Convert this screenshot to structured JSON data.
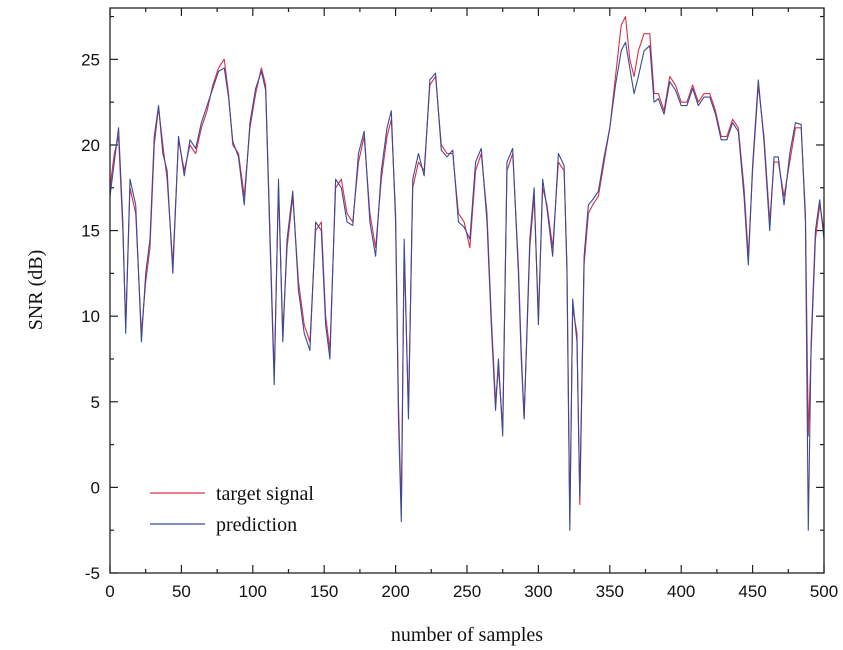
{
  "chart_data": {
    "type": "line",
    "title": "",
    "xlabel": "number of samples",
    "ylabel": "SNR (dB)",
    "xlim": [
      0,
      500
    ],
    "ylim": [
      -5,
      28
    ],
    "x_ticks": [
      0,
      50,
      100,
      150,
      200,
      250,
      300,
      350,
      400,
      450,
      500
    ],
    "y_ticks": [
      -5,
      0,
      5,
      10,
      15,
      20,
      25
    ],
    "grid": false,
    "legend_position": "bottom-left",
    "series": [
      {
        "name": "target signal",
        "color": "#d6304a",
        "points": [
          [
            0,
            17.5
          ],
          [
            3,
            19.5
          ],
          [
            6,
            20.5
          ],
          [
            9,
            15
          ],
          [
            11,
            9.5
          ],
          [
            14,
            17.5
          ],
          [
            18,
            16
          ],
          [
            22,
            9
          ],
          [
            25,
            12
          ],
          [
            28,
            14
          ],
          [
            31,
            20
          ],
          [
            34,
            22.2
          ],
          [
            37,
            20
          ],
          [
            40,
            18
          ],
          [
            44,
            13
          ],
          [
            48,
            20.3
          ],
          [
            52,
            18.5
          ],
          [
            56,
            20
          ],
          [
            60,
            19.5
          ],
          [
            64,
            21
          ],
          [
            68,
            22
          ],
          [
            72,
            23.5
          ],
          [
            76,
            24.5
          ],
          [
            80,
            25
          ],
          [
            83,
            23
          ],
          [
            86,
            20
          ],
          [
            90,
            19.5
          ],
          [
            94,
            17
          ],
          [
            98,
            21
          ],
          [
            102,
            23
          ],
          [
            106,
            24.5
          ],
          [
            109,
            23.5
          ],
          [
            112,
            15
          ],
          [
            115,
            6.5
          ],
          [
            118,
            17.5
          ],
          [
            121,
            9
          ],
          [
            124,
            14
          ],
          [
            128,
            17
          ],
          [
            132,
            12
          ],
          [
            136,
            9.5
          ],
          [
            140,
            8.5
          ],
          [
            144,
            15
          ],
          [
            148,
            15.5
          ],
          [
            151,
            10
          ],
          [
            154,
            8
          ],
          [
            158,
            17.5
          ],
          [
            162,
            18
          ],
          [
            166,
            16
          ],
          [
            170,
            15.5
          ],
          [
            174,
            19
          ],
          [
            178,
            20.5
          ],
          [
            182,
            16
          ],
          [
            186,
            14
          ],
          [
            190,
            18
          ],
          [
            194,
            20.5
          ],
          [
            197,
            21.5
          ],
          [
            200,
            16
          ],
          [
            202,
            5
          ],
          [
            204,
            -1.5
          ],
          [
            206,
            14
          ],
          [
            209,
            4.5
          ],
          [
            212,
            17.5
          ],
          [
            216,
            19
          ],
          [
            220,
            18.5
          ],
          [
            224,
            23.5
          ],
          [
            228,
            24
          ],
          [
            232,
            20
          ],
          [
            236,
            19.5
          ],
          [
            240,
            19.5
          ],
          [
            244,
            16
          ],
          [
            248,
            15.5
          ],
          [
            252,
            14
          ],
          [
            256,
            18.5
          ],
          [
            260,
            19.5
          ],
          [
            264,
            16
          ],
          [
            267,
            10
          ],
          [
            270,
            5
          ],
          [
            272,
            7
          ],
          [
            275,
            3.5
          ],
          [
            278,
            18.5
          ],
          [
            282,
            19.5
          ],
          [
            286,
            13
          ],
          [
            288,
            8
          ],
          [
            290,
            4
          ],
          [
            294,
            14
          ],
          [
            297,
            17
          ],
          [
            300,
            10
          ],
          [
            303,
            17.5
          ],
          [
            306,
            16.5
          ],
          [
            310,
            14
          ],
          [
            314,
            19
          ],
          [
            318,
            18.5
          ],
          [
            320,
            13
          ],
          [
            322,
            -2
          ],
          [
            324,
            10.5
          ],
          [
            327,
            9
          ],
          [
            329,
            -1
          ],
          [
            332,
            13
          ],
          [
            335,
            16
          ],
          [
            338,
            16.5
          ],
          [
            342,
            17
          ],
          [
            346,
            19
          ],
          [
            350,
            21
          ],
          [
            354,
            24
          ],
          [
            358,
            27
          ],
          [
            361,
            27.5
          ],
          [
            364,
            25
          ],
          [
            367,
            24
          ],
          [
            370,
            25.5
          ],
          [
            374,
            26.5
          ],
          [
            378,
            26.5
          ],
          [
            381,
            23
          ],
          [
            384,
            23
          ],
          [
            388,
            22
          ],
          [
            392,
            24
          ],
          [
            396,
            23.5
          ],
          [
            400,
            22.5
          ],
          [
            404,
            22.5
          ],
          [
            408,
            23.5
          ],
          [
            412,
            22.5
          ],
          [
            416,
            23
          ],
          [
            420,
            23
          ],
          [
            424,
            22
          ],
          [
            428,
            20.5
          ],
          [
            432,
            20.5
          ],
          [
            436,
            21.5
          ],
          [
            440,
            21
          ],
          [
            444,
            17.5
          ],
          [
            447,
            13.5
          ],
          [
            450,
            18.5
          ],
          [
            454,
            23.5
          ],
          [
            458,
            20.5
          ],
          [
            462,
            15.5
          ],
          [
            465,
            19
          ],
          [
            468,
            19
          ],
          [
            472,
            17
          ],
          [
            476,
            19
          ],
          [
            480,
            21
          ],
          [
            484,
            21
          ],
          [
            487,
            16
          ],
          [
            489,
            3
          ],
          [
            491,
            8
          ],
          [
            494,
            14.5
          ],
          [
            497,
            16.5
          ],
          [
            500,
            15
          ]
        ]
      },
      {
        "name": "prediction",
        "color": "#3a4a9a",
        "points": [
          [
            0,
            17
          ],
          [
            3,
            19
          ],
          [
            6,
            21
          ],
          [
            9,
            15.5
          ],
          [
            11,
            9
          ],
          [
            14,
            18
          ],
          [
            18,
            16.5
          ],
          [
            22,
            8.5
          ],
          [
            25,
            12.5
          ],
          [
            28,
            14.5
          ],
          [
            31,
            20.5
          ],
          [
            34,
            22.3
          ],
          [
            37,
            19.5
          ],
          [
            40,
            18.5
          ],
          [
            44,
            12.5
          ],
          [
            48,
            20.5
          ],
          [
            52,
            18.2
          ],
          [
            56,
            20.3
          ],
          [
            60,
            19.8
          ],
          [
            64,
            21.3
          ],
          [
            68,
            22.3
          ],
          [
            72,
            23.3
          ],
          [
            76,
            24.3
          ],
          [
            80,
            24.5
          ],
          [
            83,
            22.8
          ],
          [
            86,
            20.2
          ],
          [
            90,
            19.3
          ],
          [
            94,
            16.5
          ],
          [
            98,
            21.3
          ],
          [
            102,
            23.3
          ],
          [
            106,
            24.3
          ],
          [
            109,
            23.2
          ],
          [
            112,
            14.5
          ],
          [
            115,
            6
          ],
          [
            118,
            18
          ],
          [
            121,
            8.5
          ],
          [
            124,
            14.5
          ],
          [
            128,
            17.3
          ],
          [
            132,
            11.5
          ],
          [
            136,
            9
          ],
          [
            140,
            8
          ],
          [
            144,
            15.5
          ],
          [
            148,
            15
          ],
          [
            151,
            9.5
          ],
          [
            154,
            7.5
          ],
          [
            158,
            18
          ],
          [
            162,
            17.5
          ],
          [
            166,
            15.5
          ],
          [
            170,
            15.3
          ],
          [
            174,
            19.5
          ],
          [
            178,
            20.8
          ],
          [
            182,
            15.5
          ],
          [
            186,
            13.5
          ],
          [
            190,
            18.5
          ],
          [
            194,
            21
          ],
          [
            197,
            22
          ],
          [
            200,
            15.5
          ],
          [
            202,
            4
          ],
          [
            204,
            -2
          ],
          [
            206,
            14.5
          ],
          [
            209,
            4
          ],
          [
            212,
            18
          ],
          [
            216,
            19.5
          ],
          [
            220,
            18.2
          ],
          [
            224,
            23.8
          ],
          [
            228,
            24.2
          ],
          [
            232,
            19.7
          ],
          [
            236,
            19.3
          ],
          [
            240,
            19.7
          ],
          [
            244,
            15.5
          ],
          [
            248,
            15.2
          ],
          [
            252,
            14.5
          ],
          [
            256,
            19
          ],
          [
            260,
            19.8
          ],
          [
            264,
            15.5
          ],
          [
            267,
            9.5
          ],
          [
            270,
            4.5
          ],
          [
            272,
            7.5
          ],
          [
            275,
            3
          ],
          [
            278,
            19
          ],
          [
            282,
            19.8
          ],
          [
            286,
            12.5
          ],
          [
            288,
            7.5
          ],
          [
            290,
            4
          ],
          [
            294,
            14.5
          ],
          [
            297,
            17.5
          ],
          [
            300,
            9.5
          ],
          [
            303,
            18
          ],
          [
            306,
            16.3
          ],
          [
            310,
            13.5
          ],
          [
            314,
            19.5
          ],
          [
            318,
            18.8
          ],
          [
            320,
            12.5
          ],
          [
            322,
            -2.5
          ],
          [
            324,
            11
          ],
          [
            327,
            8.5
          ],
          [
            329,
            -0.5
          ],
          [
            332,
            13.5
          ],
          [
            335,
            16.5
          ],
          [
            338,
            16.8
          ],
          [
            342,
            17.3
          ],
          [
            346,
            19.3
          ],
          [
            350,
            21
          ],
          [
            354,
            23.5
          ],
          [
            358,
            25.5
          ],
          [
            361,
            26
          ],
          [
            364,
            24.5
          ],
          [
            367,
            23
          ],
          [
            370,
            24
          ],
          [
            374,
            25.5
          ],
          [
            378,
            25.8
          ],
          [
            381,
            22.5
          ],
          [
            384,
            22.7
          ],
          [
            388,
            21.8
          ],
          [
            392,
            23.7
          ],
          [
            396,
            23.2
          ],
          [
            400,
            22.3
          ],
          [
            404,
            22.3
          ],
          [
            408,
            23.3
          ],
          [
            412,
            22.3
          ],
          [
            416,
            22.8
          ],
          [
            420,
            22.8
          ],
          [
            424,
            21.8
          ],
          [
            428,
            20.3
          ],
          [
            432,
            20.3
          ],
          [
            436,
            21.3
          ],
          [
            440,
            20.8
          ],
          [
            444,
            17
          ],
          [
            447,
            13
          ],
          [
            450,
            18.8
          ],
          [
            454,
            23.8
          ],
          [
            458,
            20.2
          ],
          [
            462,
            15
          ],
          [
            465,
            19.3
          ],
          [
            468,
            19.3
          ],
          [
            472,
            16.5
          ],
          [
            476,
            19.5
          ],
          [
            480,
            21.3
          ],
          [
            484,
            21.2
          ],
          [
            487,
            15.5
          ],
          [
            489,
            -2.5
          ],
          [
            491,
            8.5
          ],
          [
            494,
            15
          ],
          [
            497,
            16.8
          ],
          [
            500,
            14.5
          ]
        ]
      }
    ]
  }
}
